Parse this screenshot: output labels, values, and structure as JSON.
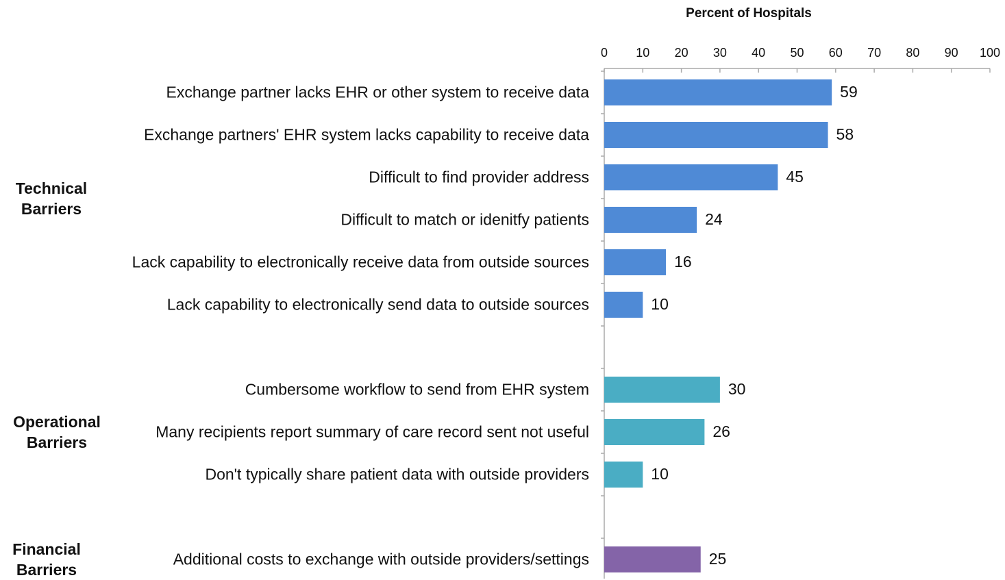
{
  "chart_data": {
    "type": "bar",
    "orientation": "horizontal",
    "title": "Percent of Hospitals",
    "xlim": [
      0,
      100
    ],
    "xticks": [
      0,
      10,
      20,
      30,
      40,
      50,
      60,
      70,
      80,
      90,
      100
    ],
    "grid": false,
    "groups": [
      {
        "label": "Technical Barriers",
        "color": "#4f8ad6",
        "categories": [
          "Exchange partner lacks EHR or other system to receive data",
          "Exchange partners' EHR system lacks capability to receive data",
          "Difficult to find provider address",
          "Difficult to match or idenitfy patients",
          "Lack capability to electronically receive data from outside sources",
          "Lack capability to electronically send data to outside sources"
        ],
        "values": [
          59,
          58,
          45,
          24,
          16,
          10
        ]
      },
      {
        "label": "Operational Barriers",
        "color": "#4aadc4",
        "categories": [
          "Cumbersome workflow to send from EHR system",
          "Many recipients report summary of care record sent not useful",
          "Don't typically share patient data with outside providers"
        ],
        "values": [
          30,
          26,
          10
        ]
      },
      {
        "label": "Financial Barriers",
        "color": "#8464a8",
        "categories": [
          "Additional costs to exchange with outside providers/settings"
        ],
        "values": [
          25
        ]
      }
    ]
  }
}
